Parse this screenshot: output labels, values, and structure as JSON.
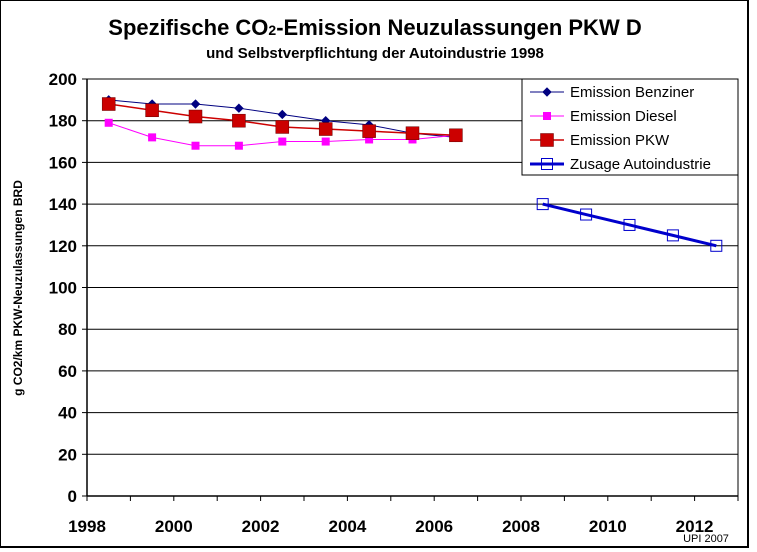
{
  "chart_data": {
    "type": "line",
    "title": "Spezifische CO",
    "title_sub": "2",
    "title_rest": "-Emission Neuzulassungen PKW D",
    "subtitle": "und Selbstverpflichtung der Autoindustrie 1998",
    "ylabel": "g CO2/km PKW-Neuzulassungen BRD",
    "xlabel": "",
    "ylim": [
      0,
      200
    ],
    "xlim": [
      1998,
      2012
    ],
    "y_ticks": [
      "0",
      "20",
      "40",
      "60",
      "80",
      "100",
      "120",
      "140",
      "160",
      "180",
      "200"
    ],
    "x_ticks": [
      "1998",
      "2000",
      "2002",
      "2004",
      "2006",
      "2008",
      "2010",
      "2012"
    ],
    "grid": "horizontal",
    "legend_position": "top-right",
    "credit": "UPI 2007",
    "series": [
      {
        "name": "Emission Benziner",
        "color": "#000080",
        "marker": "diamond",
        "x": [
          1998,
          1999,
          2000,
          2001,
          2002,
          2003,
          2004,
          2005,
          2006
        ],
        "y": [
          190,
          188,
          188,
          186,
          183,
          180,
          178,
          174,
          172
        ]
      },
      {
        "name": "Emission Diesel",
        "color": "#ff00ff",
        "marker": "square",
        "x": [
          1998,
          1999,
          2000,
          2001,
          2002,
          2003,
          2004,
          2005,
          2006
        ],
        "y": [
          179,
          172,
          168,
          168,
          170,
          170,
          171,
          171,
          173
        ]
      },
      {
        "name": "Emission PKW",
        "color": "#cc0000",
        "marker": "big-square",
        "x": [
          1998,
          1999,
          2000,
          2001,
          2002,
          2003,
          2004,
          2005,
          2006
        ],
        "y": [
          188,
          185,
          182,
          180,
          177,
          176,
          175,
          174,
          173
        ]
      },
      {
        "name": "Zusage Autoindustrie",
        "color": "#0000cc",
        "marker": "open-square",
        "x": [
          2008,
          2009,
          2010,
          2011,
          2012
        ],
        "y": [
          140,
          135,
          130,
          125,
          120
        ]
      }
    ]
  }
}
